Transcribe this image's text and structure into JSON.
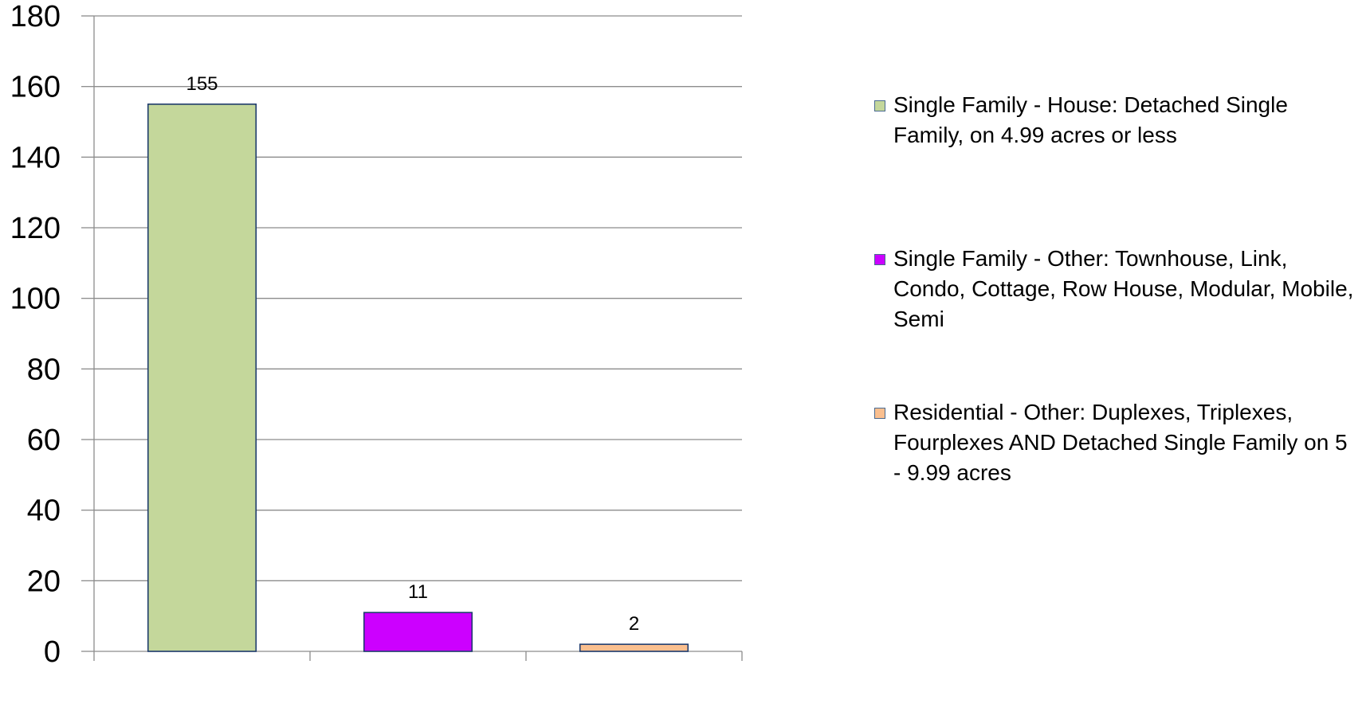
{
  "chart_data": {
    "type": "bar",
    "categories": [
      "",
      "",
      ""
    ],
    "series": [
      {
        "name": "Single Family - House: Detached Single Family, on 4.99 acres or less",
        "value": 155,
        "label": "155",
        "color": "#c4d79b"
      },
      {
        "name": "Single Family - Other: Townhouse, Link, Condo, Cottage, Row House, Modular, Mobile, Semi",
        "value": 11,
        "label": "11",
        "color": "#cc00ff"
      },
      {
        "name": "Residential - Other: Duplexes, Triplexes, Fourplexes AND Detached Single Family on 5 - 9.99 acres",
        "value": 2,
        "label": "2",
        "color": "#fabf8f"
      }
    ],
    "ylim": [
      0,
      180
    ],
    "yticks": [
      "0",
      "20",
      "40",
      "60",
      "80",
      "100",
      "120",
      "140",
      "160",
      "180"
    ],
    "grid": true,
    "legend_position": "right",
    "bar_border_color": "#1f3c6e",
    "grid_color": "#8c8c8c"
  }
}
